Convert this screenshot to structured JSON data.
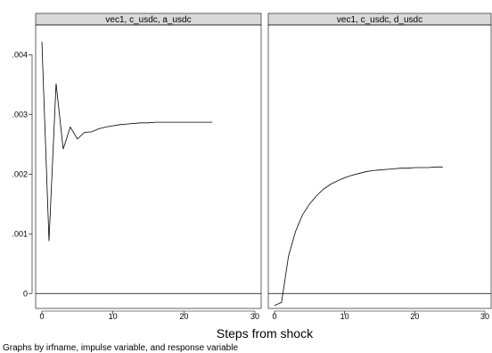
{
  "chart_data": {
    "type": "line",
    "xlabel": "Steps from shock",
    "note": "Graphs by irfname, impulse variable, and response variable",
    "xlim": [
      0,
      30
    ],
    "ylim": [
      -0.00025,
      0.0045
    ],
    "xticks": [
      0,
      10,
      20,
      30
    ],
    "yticks": [
      0,
      0.001,
      0.002,
      0.003,
      0.004
    ],
    "ytick_labels": [
      "0",
      ".001",
      ".002",
      ".003",
      ".004"
    ],
    "reference_line_y": 0,
    "panels": [
      {
        "title": "vec1, c_usdc, a_usdc",
        "x": [
          0,
          1,
          2,
          3,
          4,
          5,
          6,
          7,
          8,
          9,
          10,
          11,
          12,
          13,
          14,
          15,
          16,
          17,
          18,
          19,
          20,
          21,
          22,
          23,
          24
        ],
        "y": [
          0.00422,
          0.00088,
          0.00352,
          0.00242,
          0.00279,
          0.00259,
          0.0027,
          0.00271,
          0.00276,
          0.00279,
          0.00281,
          0.00283,
          0.00284,
          0.00285,
          0.00286,
          0.00286,
          0.00287,
          0.00287,
          0.00287,
          0.00287,
          0.00287,
          0.00287,
          0.00287,
          0.00287,
          0.00287
        ]
      },
      {
        "title": "vec1, c_usdc, d_usdc",
        "x": [
          0,
          1,
          2,
          3,
          4,
          5,
          6,
          7,
          8,
          9,
          10,
          11,
          12,
          13,
          14,
          15,
          16,
          17,
          18,
          19,
          20,
          21,
          22,
          23,
          24
        ],
        "y": [
          -0.0002,
          -0.00015,
          0.00063,
          0.00104,
          0.00132,
          0.0015,
          0.00164,
          0.00175,
          0.00183,
          0.00189,
          0.00194,
          0.00198,
          0.00201,
          0.00204,
          0.00206,
          0.00207,
          0.00208,
          0.00209,
          0.0021,
          0.0021,
          0.00211,
          0.00211,
          0.00211,
          0.00212,
          0.00212
        ]
      }
    ]
  }
}
